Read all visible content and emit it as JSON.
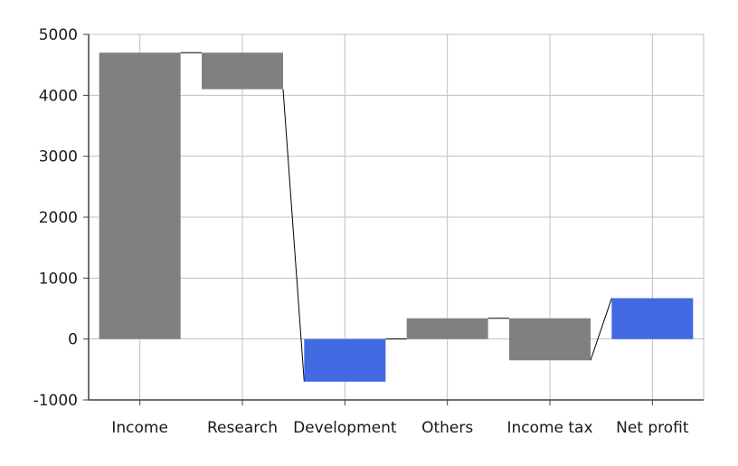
{
  "chart_data": {
    "type": "waterfall",
    "title": "",
    "xlabel": "",
    "ylabel": "",
    "categories": [
      "Income",
      "Research",
      "Development",
      "Others",
      "Income tax",
      "Net profit"
    ],
    "bars": [
      {
        "category": "Income",
        "start": 0,
        "end": 4700,
        "color": "#808080"
      },
      {
        "category": "Research",
        "start": 4700,
        "end": 4100,
        "color": "#808080"
      },
      {
        "category": "Development",
        "start": -700,
        "end": 0,
        "color": "#4169e1"
      },
      {
        "category": "Others",
        "start": 0,
        "end": 340,
        "color": "#808080"
      },
      {
        "category": "Income tax",
        "start": 340,
        "end": -350,
        "color": "#808080"
      },
      {
        "category": "Net profit",
        "start": 0,
        "end": 670,
        "color": "#4169e1"
      }
    ],
    "connectors": [
      {
        "from": "Income",
        "to": "Research",
        "y_from": 4700,
        "y_to": 4700
      },
      {
        "from": "Research",
        "to": "Development",
        "y_from": 4100,
        "y_to": -700
      },
      {
        "from": "Development",
        "to": "Others",
        "y_from": 0,
        "y_to": 0
      },
      {
        "from": "Others",
        "to": "Income tax",
        "y_from": 340,
        "y_to": 340
      },
      {
        "from": "Income tax",
        "to": "Net profit",
        "y_from": -350,
        "y_to": 670
      }
    ],
    "ylim": [
      -1000,
      5000
    ],
    "yticks": [
      -1000,
      0,
      1000,
      2000,
      3000,
      4000,
      5000
    ],
    "ytick_labels": [
      "-1000",
      "0",
      "1000",
      "2000",
      "3000",
      "4000",
      "5000"
    ],
    "grid": true,
    "legend": "none",
    "colors": {
      "gray_bar": "#808080",
      "blue_bar": "#4169e1",
      "grid": "#c0c0c0",
      "axis": "#404040"
    }
  }
}
